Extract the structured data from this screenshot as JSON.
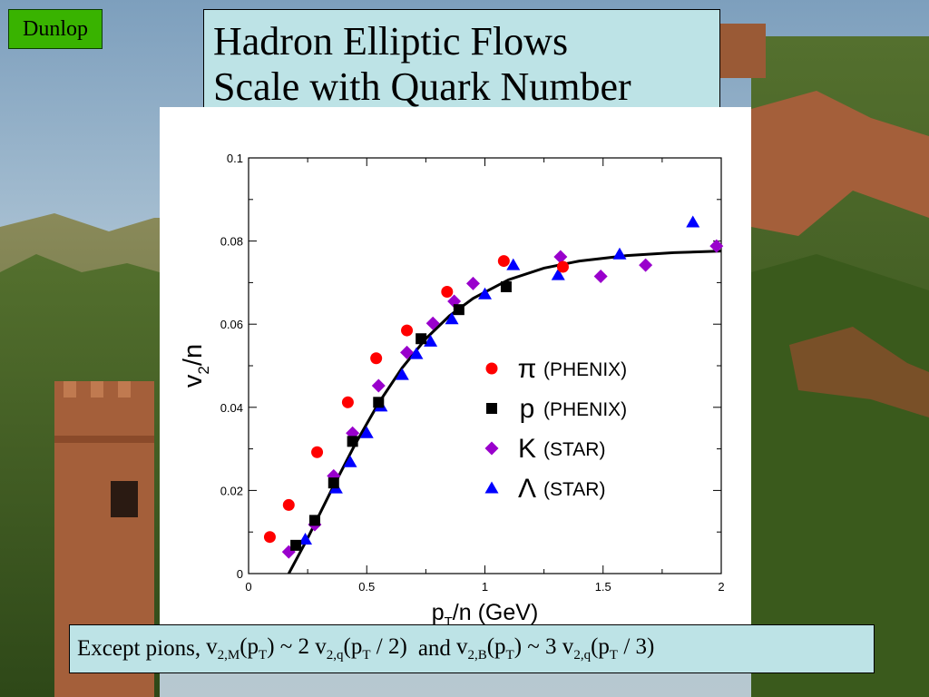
{
  "slide": {
    "author_tag": "Dunlop",
    "title_line1": "Hadron Elliptic Flows",
    "title_line2": "Scale with Quark Number",
    "caption": {
      "prefix": "Except pions,",
      "conjunction": "and",
      "formula_meson": "v2,M(pT) ~ 2 v2,q(pT / 2)",
      "formula_baryon": "v2,B(pT) ~ 3 v2,q(pT / 3)"
    },
    "background_colors": {
      "sky": "#8fb0c9",
      "hills": "#6e7d3a",
      "wall": "#a45f3a",
      "foliage": "#3d5c1f"
    }
  },
  "chart_data": {
    "type": "scatter",
    "title": "",
    "xlabel": "pT/n (GeV)",
    "ylabel": "v2/n",
    "xlim": [
      0,
      2
    ],
    "ylim": [
      0,
      0.1
    ],
    "x_ticks": [
      "0",
      "0.5",
      "1",
      "1.5",
      "2"
    ],
    "y_ticks": [
      "0",
      "0.02",
      "0.04",
      "0.06",
      "0.08",
      "0.1"
    ],
    "grid": false,
    "legend_position": "center-right",
    "series": [
      {
        "name": "π (PHENIX)",
        "symbol": "π",
        "experiment": "(PHENIX)",
        "marker": "circle",
        "color": "#ff0000",
        "points": [
          [
            0.09,
            0.0088
          ],
          [
            0.17,
            0.0165
          ],
          [
            0.29,
            0.0292
          ],
          [
            0.42,
            0.0412
          ],
          [
            0.54,
            0.0518
          ],
          [
            0.67,
            0.0585
          ],
          [
            0.84,
            0.0678
          ],
          [
            1.08,
            0.0752
          ],
          [
            1.33,
            0.0738
          ]
        ]
      },
      {
        "name": "p (PHENIX)",
        "symbol": "p",
        "experiment": "(PHENIX)",
        "marker": "square",
        "color": "#000000",
        "points": [
          [
            0.2,
            0.0068
          ],
          [
            0.28,
            0.0128
          ],
          [
            0.36,
            0.0218
          ],
          [
            0.44,
            0.0318
          ],
          [
            0.55,
            0.0412
          ],
          [
            0.73,
            0.0565
          ],
          [
            0.89,
            0.0635
          ],
          [
            1.09,
            0.069
          ]
        ]
      },
      {
        "name": "K (STAR)",
        "symbol": "K",
        "experiment": "(STAR)",
        "marker": "diamond",
        "color": "#9900cc",
        "points": [
          [
            0.17,
            0.0052
          ],
          [
            0.28,
            0.0118
          ],
          [
            0.36,
            0.0235
          ],
          [
            0.44,
            0.0338
          ],
          [
            0.55,
            0.0452
          ],
          [
            0.67,
            0.0532
          ],
          [
            0.78,
            0.0602
          ],
          [
            0.87,
            0.0655
          ],
          [
            0.95,
            0.0698
          ],
          [
            1.32,
            0.0762
          ],
          [
            1.49,
            0.0715
          ],
          [
            1.68,
            0.0742
          ],
          [
            1.98,
            0.0788
          ]
        ]
      },
      {
        "name": "Λ (STAR)",
        "symbol": "Λ",
        "experiment": "(STAR)",
        "marker": "triangle",
        "color": "#0000ff",
        "points": [
          [
            0.24,
            0.0082
          ],
          [
            0.37,
            0.0205
          ],
          [
            0.43,
            0.0268
          ],
          [
            0.5,
            0.0338
          ],
          [
            0.56,
            0.0402
          ],
          [
            0.65,
            0.0478
          ],
          [
            0.71,
            0.0528
          ],
          [
            0.77,
            0.0558
          ],
          [
            0.86,
            0.0612
          ],
          [
            1.0,
            0.0672
          ],
          [
            1.12,
            0.0742
          ],
          [
            1.31,
            0.0718
          ],
          [
            1.57,
            0.0768
          ],
          [
            1.88,
            0.0845
          ]
        ]
      }
    ],
    "fit_curve": {
      "color": "#000000",
      "points": [
        [
          0.17,
          0.0
        ],
        [
          0.25,
          0.0085
        ],
        [
          0.35,
          0.02
        ],
        [
          0.45,
          0.031
        ],
        [
          0.55,
          0.041
        ],
        [
          0.65,
          0.0495
        ],
        [
          0.75,
          0.0565
        ],
        [
          0.85,
          0.062
        ],
        [
          0.95,
          0.0662
        ],
        [
          1.1,
          0.0707
        ],
        [
          1.25,
          0.0735
        ],
        [
          1.4,
          0.0752
        ],
        [
          1.6,
          0.0765
        ],
        [
          1.8,
          0.0772
        ],
        [
          2.0,
          0.0776
        ]
      ]
    }
  }
}
